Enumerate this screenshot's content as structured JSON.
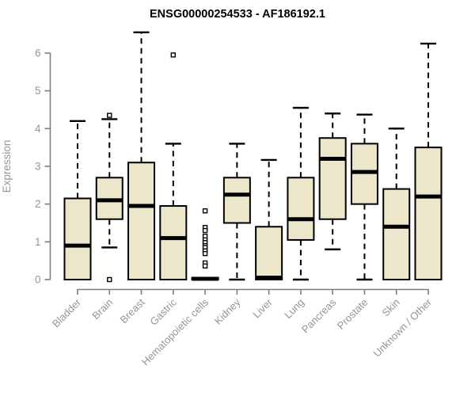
{
  "chart_data": {
    "type": "boxplot",
    "title": "ENSG00000254533 - AF186192.1",
    "xlabel": "",
    "ylabel": "Expression",
    "ylim": [
      0,
      6
    ],
    "yticks": [
      0,
      1,
      2,
      3,
      4,
      5,
      6
    ],
    "grid": false,
    "legend": "none",
    "categories": [
      "Bladder",
      "Brain",
      "Breast",
      "Gastric",
      "Hematopoietic cells",
      "Kidney",
      "Liver",
      "Lung",
      "Pancreas",
      "Prostate",
      "Skin",
      "Unknown / Other"
    ],
    "boxes": [
      {
        "category": "Bladder",
        "low": 0,
        "q1": 0,
        "median": 0.9,
        "q3": 2.15,
        "high": 4.2,
        "outliers": []
      },
      {
        "category": "Brain",
        "low": 0.85,
        "q1": 1.6,
        "median": 2.1,
        "q3": 2.7,
        "high": 4.25,
        "outliers": [
          4.35,
          0
        ]
      },
      {
        "category": "Breast",
        "low": 0,
        "q1": 0,
        "median": 1.95,
        "q3": 3.1,
        "high": 6.55,
        "outliers": []
      },
      {
        "category": "Gastric",
        "low": 0,
        "q1": 0,
        "median": 1.1,
        "q3": 1.95,
        "high": 3.6,
        "outliers": [
          5.95
        ]
      },
      {
        "category": "Hematopoietic cells",
        "low": 0,
        "q1": 0,
        "median": 0.02,
        "q3": 0.05,
        "high": 0.05,
        "outliers": [
          1.82,
          1.38,
          1.3,
          1.15,
          1.05,
          0.98,
          0.9,
          0.85,
          0.76,
          0.69,
          0.44,
          0.36
        ]
      },
      {
        "category": "Kidney",
        "low": 0,
        "q1": 1.5,
        "median": 2.25,
        "q3": 2.7,
        "high": 3.6,
        "outliers": []
      },
      {
        "category": "Liver",
        "low": 0,
        "q1": 0,
        "median": 0.05,
        "q3": 1.4,
        "high": 3.17,
        "outliers": []
      },
      {
        "category": "Lung",
        "low": 0,
        "q1": 1.05,
        "median": 1.6,
        "q3": 2.7,
        "high": 4.55,
        "outliers": []
      },
      {
        "category": "Pancreas",
        "low": 0.8,
        "q1": 1.6,
        "median": 3.2,
        "q3": 3.75,
        "high": 4.4,
        "outliers": []
      },
      {
        "category": "Prostate",
        "low": 0,
        "q1": 2.0,
        "median": 2.85,
        "q3": 3.6,
        "high": 4.37,
        "outliers": []
      },
      {
        "category": "Skin",
        "low": 0,
        "q1": 0,
        "median": 1.4,
        "q3": 2.4,
        "high": 4.0,
        "outliers": []
      },
      {
        "category": "Unknown / Other",
        "low": 0,
        "q1": 0,
        "median": 2.2,
        "q3": 3.5,
        "high": 6.25,
        "outliers": []
      }
    ],
    "colors": {
      "box_fill": "#ece6cb",
      "box_stroke": "#000000",
      "median": "#000000",
      "whisker": "#000000",
      "axis": "#7f7f7f",
      "tick_label": "#959595",
      "title": "#000000",
      "background": "#ffffff"
    }
  }
}
